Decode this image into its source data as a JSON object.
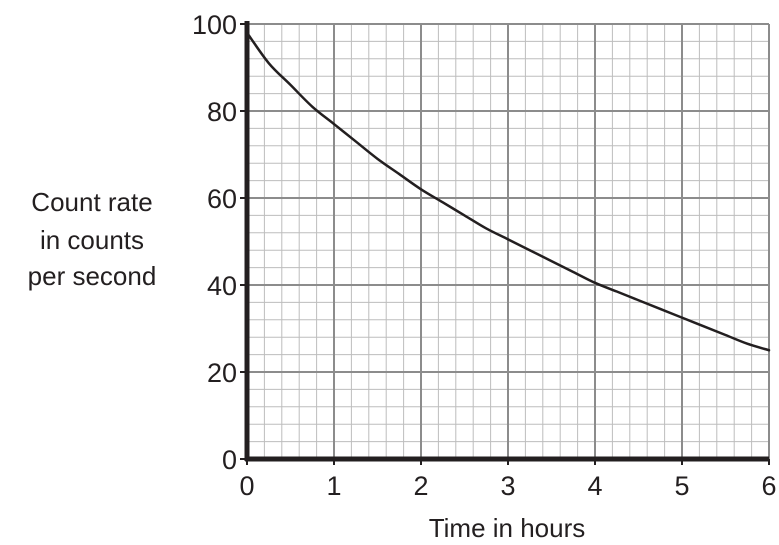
{
  "chart_data": {
    "type": "line",
    "title": "",
    "xlabel": "Time in hours",
    "ylabel_lines": [
      "Count rate",
      "in counts",
      "per second"
    ],
    "xlim": [
      0,
      6
    ],
    "ylim": [
      0,
      100
    ],
    "x_ticks": [
      "0",
      "1",
      "2",
      "3",
      "4",
      "5",
      "6"
    ],
    "y_ticks": [
      "0",
      "20",
      "40",
      "60",
      "80",
      "100"
    ],
    "grid": true,
    "grid_minor_step_x": 0.2,
    "grid_minor_step_y": 4,
    "legend": "none",
    "colors": {
      "curve": "#231f20",
      "axis": "#231f20",
      "major_grid": "#8c8c8c",
      "minor_grid": "#bdbdbd",
      "text": "#231f20"
    },
    "series": [
      {
        "x": [
          0,
          0.25,
          0.5,
          0.75,
          1,
          1.25,
          1.5,
          1.75,
          2,
          2.25,
          2.5,
          2.75,
          3,
          3.25,
          3.5,
          3.75,
          4,
          4.25,
          4.5,
          4.75,
          5,
          5.25,
          5.5,
          5.75,
          6
        ],
        "y": [
          98,
          91,
          86,
          81,
          77,
          73,
          69,
          65.5,
          62,
          59,
          56,
          53,
          50.5,
          48,
          45.5,
          43,
          40.5,
          38.5,
          36.5,
          34.5,
          32.5,
          30.5,
          28.5,
          26.5,
          25
        ]
      }
    ]
  }
}
